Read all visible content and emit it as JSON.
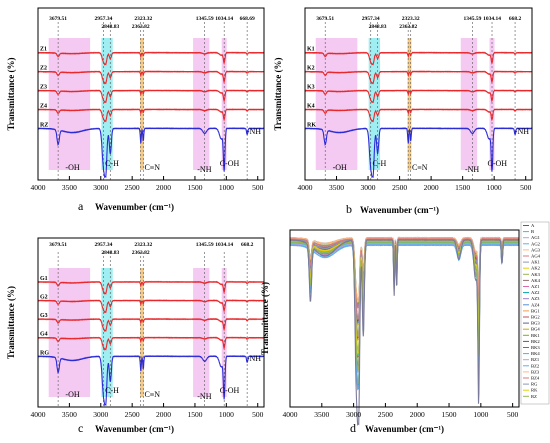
{
  "panels": [
    {
      "id": "a",
      "letter": "a",
      "xlabel": "Wavenumber (cm⁻¹)",
      "ylabel": "Transmittance (%)",
      "xlim": [
        4000,
        400
      ],
      "xticks": [
        4000,
        3500,
        3000,
        2500,
        2000,
        1500,
        1000,
        500
      ],
      "peaks": [
        "3679.51",
        "2957.34",
        "2848.83",
        "2363.82",
        "2323.32",
        "1345.59",
        "1034.14",
        "668.69"
      ],
      "series": [
        {
          "name": "Z1",
          "color": "#e8282b"
        },
        {
          "name": "Z2",
          "color": "#e8282b"
        },
        {
          "name": "Z3",
          "color": "#e8282b"
        },
        {
          "name": "Z4",
          "color": "#e8282b"
        },
        {
          "name": "RZ",
          "color": "#2b2bd6"
        }
      ],
      "bands": [
        {
          "label": "-OH",
          "color": "#f2b8ee"
        },
        {
          "label": "C-H",
          "color": "#7ee8ee"
        },
        {
          "label": "C≡N",
          "color": "#f0b860"
        },
        {
          "label": "-NH",
          "color": "#f2b8ee"
        },
        {
          "label": "C-OH",
          "color": "#f2b8ee"
        },
        {
          "label": "-NH",
          "color": ""
        }
      ]
    },
    {
      "id": "b",
      "letter": "b",
      "xlabel": "Wavenumber (cm⁻¹)",
      "ylabel": "Transmittance (%)",
      "xlim": [
        4000,
        400
      ],
      "xticks": [
        4000,
        3500,
        3000,
        2500,
        2000,
        1500,
        1000,
        500
      ],
      "peaks": [
        "3679.51",
        "2957.34",
        "2848.83",
        "2363.82",
        "2323.32",
        "1345.59",
        "1034.14",
        "668.2"
      ],
      "series": [
        {
          "name": "K1",
          "color": "#e8282b"
        },
        {
          "name": "K2",
          "color": "#e8282b"
        },
        {
          "name": "K3",
          "color": "#e8282b"
        },
        {
          "name": "K4",
          "color": "#e8282b"
        },
        {
          "name": "RK",
          "color": "#2b2bd6"
        }
      ],
      "bands": [
        {
          "label": "-OH",
          "color": "#f2b8ee"
        },
        {
          "label": "C-H",
          "color": "#7ee8ee"
        },
        {
          "label": "C≡N",
          "color": "#f0b860"
        },
        {
          "label": "-NH",
          "color": "#f2b8ee"
        },
        {
          "label": "C-OH",
          "color": "#f2b8ee"
        },
        {
          "label": "-NH",
          "color": ""
        }
      ]
    },
    {
      "id": "c",
      "letter": "c",
      "xlabel": "Wavenumber (cm⁻¹)",
      "ylabel": "Transmittance (%)",
      "xlim": [
        4000,
        400
      ],
      "xticks": [
        4000,
        3500,
        3000,
        2500,
        2000,
        1500,
        1000,
        500
      ],
      "peaks": [
        "3679.51",
        "2957.34",
        "2848.83",
        "2363.82",
        "2323.32",
        "1345.59",
        "1034.14",
        "668.2"
      ],
      "series": [
        {
          "name": "G1",
          "color": "#e8282b"
        },
        {
          "name": "G2",
          "color": "#e8282b"
        },
        {
          "name": "G3",
          "color": "#e8282b"
        },
        {
          "name": "G4",
          "color": "#e8282b"
        },
        {
          "name": "RG",
          "color": "#2b2bd6"
        }
      ],
      "bands": [
        {
          "label": "-OH",
          "color": "#f2b8ee"
        },
        {
          "label": "C-H",
          "color": "#7ee8ee"
        },
        {
          "label": "C≡N",
          "color": "#f0b860"
        },
        {
          "label": "-NH",
          "color": "#f2b8ee"
        },
        {
          "label": "C-OH",
          "color": "#f2b8ee"
        },
        {
          "label": "-NH",
          "color": ""
        }
      ]
    },
    {
      "id": "d",
      "letter": "d",
      "xlabel": "Wavenumber (cm⁻¹)",
      "ylabel": "Transmittance (%)",
      "xticks": [
        4000,
        3500,
        3000,
        2500,
        2000,
        1500,
        1000,
        500
      ],
      "legend": [
        "A",
        "B",
        "AG1",
        "AG2",
        "AG3",
        "AG4",
        "AK1",
        "AK2",
        "AK3",
        "AK4",
        "AZ1",
        "AZ2",
        "AZ3",
        "AZ4",
        "BG1",
        "BG2",
        "BG3",
        "BG4",
        "BK1",
        "BK2",
        "BK3",
        "BK4",
        "BZ1",
        "BZ2",
        "BZ3",
        "BZ4",
        "RG",
        "RK",
        "RZ"
      ]
    }
  ],
  "chart_data": [
    {
      "type": "line",
      "title": "",
      "xlabel": "Wavenumber (cm⁻¹)",
      "ylabel": "Transmittance (%)",
      "xlim": [
        4000,
        400
      ],
      "series_names": [
        "Z1",
        "Z2",
        "Z3",
        "Z4",
        "RZ"
      ],
      "peak_positions": [
        3679.51,
        2957.34,
        2848.83,
        2363.82,
        2323.32,
        1345.59,
        1034.14,
        668.69
      ]
    },
    {
      "type": "line",
      "title": "",
      "xlabel": "Wavenumber (cm⁻¹)",
      "ylabel": "Transmittance (%)",
      "xlim": [
        4000,
        400
      ],
      "series_names": [
        "K1",
        "K2",
        "K3",
        "K4",
        "RK"
      ],
      "peak_positions": [
        3679.51,
        2957.34,
        2848.83,
        2363.82,
        2323.32,
        1345.59,
        1034.14,
        668.2
      ]
    },
    {
      "type": "line",
      "title": "",
      "xlabel": "Wavenumber (cm⁻¹)",
      "ylabel": "Transmittance (%)",
      "xlim": [
        4000,
        400
      ],
      "series_names": [
        "G1",
        "G2",
        "G3",
        "G4",
        "RG"
      ],
      "peak_positions": [
        3679.51,
        2957.34,
        2848.83,
        2363.82,
        2323.32,
        1345.59,
        1034.14,
        668.2
      ]
    },
    {
      "type": "line",
      "title": "",
      "xlabel": "Wavenumber (cm⁻¹)",
      "ylabel": "Transmittance (%)",
      "xlim": [
        4000,
        400
      ],
      "series_names": [
        "A",
        "B",
        "AG1",
        "AG2",
        "AG3",
        "AG4",
        "AK1",
        "AK2",
        "AK3",
        "AK4",
        "AZ1",
        "AZ2",
        "AZ3",
        "AZ4",
        "BG1",
        "BG2",
        "BG3",
        "BG4",
        "BK1",
        "BK2",
        "BK3",
        "BK4",
        "BZ1",
        "BZ2",
        "BZ3",
        "BZ4",
        "RG",
        "RK",
        "RZ"
      ]
    }
  ]
}
